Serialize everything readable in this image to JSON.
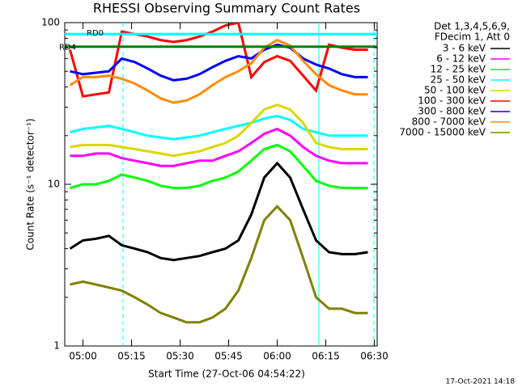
{
  "chart_data": {
    "type": "line",
    "title": "RHESSI Observing Summary Count Rates",
    "xlabel": "Start Time (27-Oct-06 04:54:22)",
    "ylabel": "Count Rate (s⁻¹ detector⁻¹)",
    "legend_header": [
      "Det 1,3,4,5,6,9,",
      "FDecim 1, Att 0"
    ],
    "footer": "17-Oct-2021 14:18",
    "log_y": true,
    "xlim": [
      "04:54:22",
      "06:30:52"
    ],
    "xticks": [
      "05:00",
      "05:15",
      "05:30",
      "05:45",
      "06:00",
      "06:15",
      "06:30"
    ],
    "ylim": [
      1,
      100
    ],
    "yticks": [
      1,
      10,
      100
    ],
    "yminorticks": [
      2,
      3,
      4,
      5,
      6,
      7,
      8,
      9,
      20,
      30,
      40,
      50,
      60,
      70,
      80,
      90
    ],
    "x": [
      "04:56",
      "05:00",
      "05:04",
      "05:08",
      "05:12",
      "05:16",
      "05:20",
      "05:24",
      "05:28",
      "05:32",
      "05:36",
      "05:40",
      "05:44",
      "05:48",
      "05:52",
      "05:56",
      "06:00",
      "06:04",
      "06:08",
      "06:12",
      "06:16",
      "06:20",
      "06:24",
      "06:28"
    ],
    "series": [
      {
        "name": "3 - 6 keV",
        "color": "#000000",
        "values": [
          4,
          4.5,
          4.6,
          4.8,
          4.2,
          4,
          3.8,
          3.5,
          3.4,
          3.5,
          3.6,
          3.8,
          4,
          4.5,
          6.5,
          11,
          13.5,
          11,
          7,
          4.5,
          3.8,
          3.7,
          3.7,
          3.8
        ]
      },
      {
        "name": "6 - 12 keV",
        "color": "#ff00ff",
        "values": [
          15,
          15,
          15.5,
          15.5,
          14.5,
          14,
          13.5,
          13,
          13,
          13.5,
          14,
          14,
          15,
          16,
          18,
          20.5,
          22,
          20,
          17,
          15,
          14,
          13.5,
          13.5,
          13.5
        ]
      },
      {
        "name": "12 - 25 keV",
        "color": "#00ff00",
        "values": [
          9.5,
          10,
          10,
          10.5,
          11.5,
          11,
          10.5,
          9.8,
          9.5,
          9.5,
          9.8,
          10.5,
          11,
          12,
          14,
          16.5,
          17.5,
          16,
          13,
          10.5,
          9.8,
          9.5,
          9.5,
          9.5
        ]
      },
      {
        "name": "25 - 50 keV",
        "color": "#00ffff",
        "values": [
          21,
          22,
          22.5,
          23,
          22,
          21,
          20,
          19.5,
          19,
          19.5,
          20,
          21,
          22,
          23,
          24,
          25.5,
          26.5,
          25,
          22,
          21,
          20,
          20,
          20,
          20
        ]
      },
      {
        "name": "50 - 100 keV",
        "color": "#d8d800",
        "values": [
          17,
          17.5,
          17.5,
          17.5,
          17,
          16.5,
          16,
          15.5,
          15,
          15.5,
          16,
          17,
          18,
          20,
          24,
          29,
          31,
          29,
          24,
          18,
          17,
          16.5,
          16.5,
          16.5
        ]
      },
      {
        "name": "100 - 300 keV",
        "color": "#ff0000",
        "values": [
          68,
          35,
          36,
          37,
          88,
          85,
          82,
          78,
          76,
          78,
          82,
          88,
          96,
          100,
          46,
          57,
          62,
          58,
          47,
          38,
          73,
          70,
          68,
          68
        ]
      },
      {
        "name": "300 - 800 keV",
        "color": "#0000ff",
        "values": [
          50,
          48,
          49,
          50,
          60,
          57,
          52,
          47,
          44,
          45,
          48,
          53,
          58,
          62,
          60,
          68,
          73,
          70,
          60,
          55,
          52,
          48,
          46,
          46
        ]
      },
      {
        "name": "800 - 7000 keV",
        "color": "#ff8c00",
        "values": [
          41,
          46,
          46,
          47,
          45,
          42,
          38,
          34,
          32,
          33,
          36,
          41,
          46,
          50,
          56,
          70,
          78,
          72,
          58,
          48,
          41,
          38,
          36,
          36
        ]
      },
      {
        "name": "7000 - 15000 keV",
        "color": "#808000",
        "values": [
          2.4,
          2.5,
          2.4,
          2.3,
          2.2,
          2,
          1.8,
          1.6,
          1.5,
          1.4,
          1.4,
          1.5,
          1.7,
          2.2,
          3.5,
          6,
          7.3,
          6,
          3.5,
          2,
          1.7,
          1.7,
          1.6,
          1.6
        ]
      }
    ],
    "levels": [
      {
        "label": "RD0",
        "value": 85,
        "color": "#00ffff"
      },
      {
        "label": "RD4",
        "value": 71,
        "color": "#008000"
      }
    ],
    "vlines": [
      {
        "x": "05:12:22",
        "color": "#00ffff",
        "dashed": true
      },
      {
        "x": "06:12:52",
        "color": "#00ffff",
        "dashed": false
      },
      {
        "x": "06:29:52",
        "color": "#00ffff",
        "dashed": true
      }
    ]
  }
}
